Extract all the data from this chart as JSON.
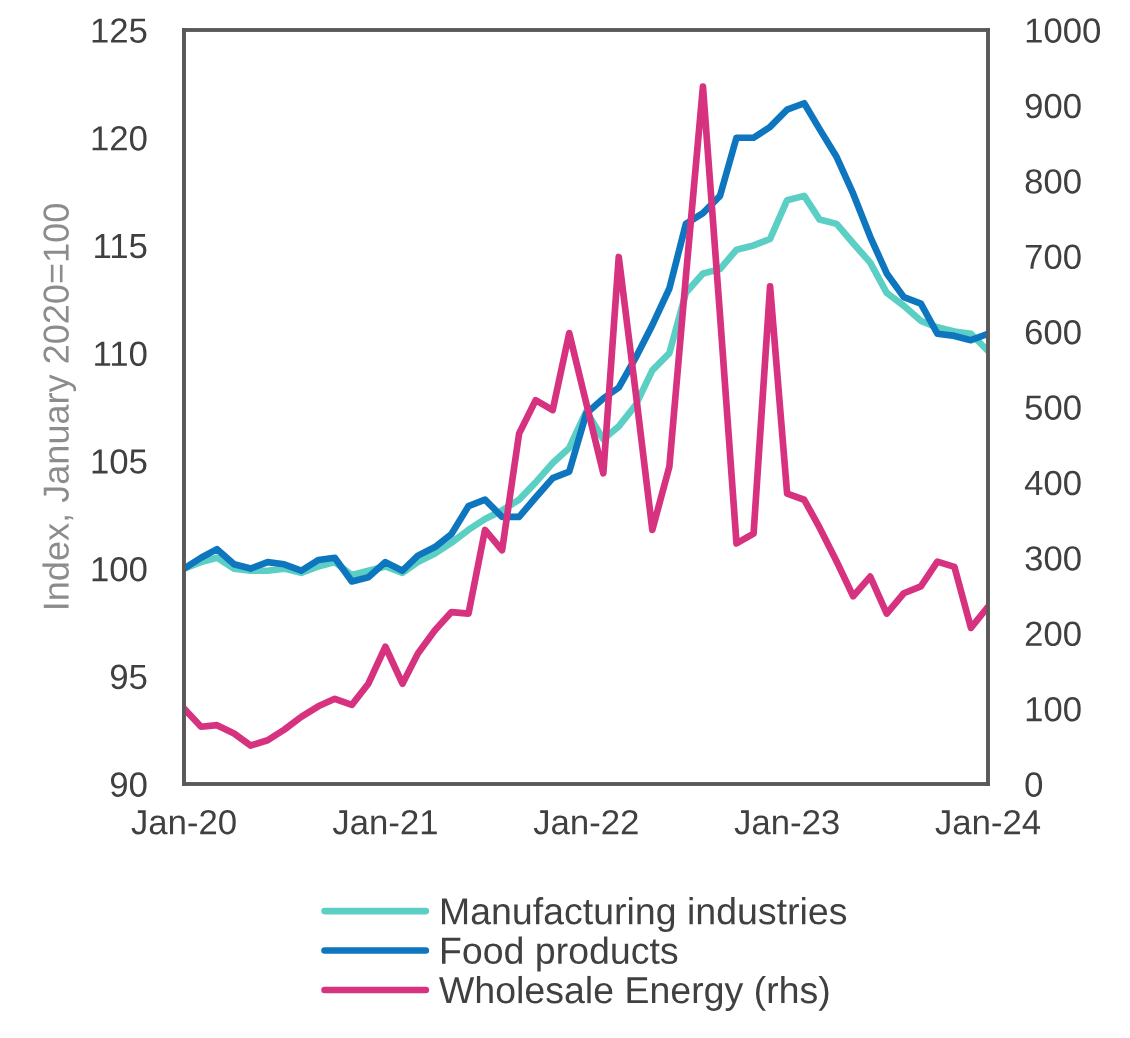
{
  "chart_data": {
    "type": "line",
    "ylabel": "Index, January 2020=100",
    "x": [
      "2020-01",
      "2020-02",
      "2020-03",
      "2020-04",
      "2020-05",
      "2020-06",
      "2020-07",
      "2020-08",
      "2020-09",
      "2020-10",
      "2020-11",
      "2020-12",
      "2021-01",
      "2021-02",
      "2021-03",
      "2021-04",
      "2021-05",
      "2021-06",
      "2021-07",
      "2021-08",
      "2021-09",
      "2021-10",
      "2021-11",
      "2021-12",
      "2022-01",
      "2022-02",
      "2022-03",
      "2022-04",
      "2022-05",
      "2022-06",
      "2022-07",
      "2022-08",
      "2022-09",
      "2022-10",
      "2022-11",
      "2022-12",
      "2023-01",
      "2023-02",
      "2023-03",
      "2023-04",
      "2023-05",
      "2023-06",
      "2023-07",
      "2023-08",
      "2023-09",
      "2023-10",
      "2023-11",
      "2023-12",
      "2024-01"
    ],
    "series": [
      {
        "name": "Manufacturing industries",
        "color": "#5ccfc4",
        "values": [
          100.0,
          100.3,
          100.5,
          100.0,
          99.9,
          99.9,
          100.0,
          99.8,
          100.1,
          100.3,
          99.7,
          99.9,
          100.1,
          99.8,
          100.3,
          100.7,
          101.2,
          101.8,
          102.3,
          102.7,
          103.2,
          104.0,
          104.9,
          105.6,
          107.3,
          106.0,
          106.6,
          107.6,
          109.2,
          110.0,
          112.8,
          113.7,
          113.9,
          114.8,
          115.0,
          115.3,
          117.1,
          117.3,
          116.2,
          116.0,
          115.1,
          114.2,
          112.8,
          112.2,
          111.5,
          111.2,
          111.0,
          110.9,
          110.1
        ]
      },
      {
        "name": "Food products",
        "color": "#0d76bf",
        "values": [
          100.0,
          100.5,
          100.9,
          100.2,
          100.0,
          100.3,
          100.2,
          99.9,
          100.4,
          100.5,
          99.4,
          99.6,
          100.3,
          99.9,
          100.6,
          101.0,
          101.6,
          102.9,
          103.2,
          102.4,
          102.4,
          103.3,
          104.2,
          104.5,
          107.2,
          107.9,
          108.4,
          109.8,
          111.3,
          113.0,
          116.0,
          116.5,
          117.3,
          120.0,
          120.0,
          120.5,
          121.3,
          121.6,
          120.4,
          119.1,
          117.4,
          115.4,
          113.7,
          112.6,
          112.3,
          110.9,
          110.8,
          110.6,
          110.9
        ]
      },
      {
        "name": "Wholesale Energy (rhs)",
        "color": "#d6327f",
        "axis": "y2",
        "values": [
          100,
          76,
          78,
          67,
          51,
          58,
          72,
          89,
          103,
          113,
          105,
          133,
          182,
          133,
          173,
          204,
          228,
          226,
          337,
          310,
          465,
          509,
          496,
          598,
          505,
          412,
          699,
          518,
          337,
          421,
          673,
          925,
          622,
          319,
          332,
          660,
          385,
          377,
          340,
          295,
          249,
          275,
          226,
          253,
          262,
          295,
          288,
          207,
          235
        ]
      }
    ],
    "xlim": [
      "2020-01",
      "2024-01"
    ],
    "xticks": [
      {
        "value": "2020-01",
        "label": "Jan-20"
      },
      {
        "value": "2021-01",
        "label": "Jan-21"
      },
      {
        "value": "2022-01",
        "label": "Jan-22"
      },
      {
        "value": "2023-01",
        "label": "Jan-23"
      },
      {
        "value": "2024-01",
        "label": "Jan-24"
      }
    ],
    "ylim": [
      90,
      125
    ],
    "yticks": [
      90,
      95,
      100,
      105,
      110,
      115,
      120,
      125
    ],
    "y2lim": [
      0,
      1000
    ],
    "y2ticks": [
      0,
      100,
      200,
      300,
      400,
      500,
      600,
      700,
      800,
      900,
      1000
    ],
    "legend": "bottom",
    "line_style": "solid"
  }
}
